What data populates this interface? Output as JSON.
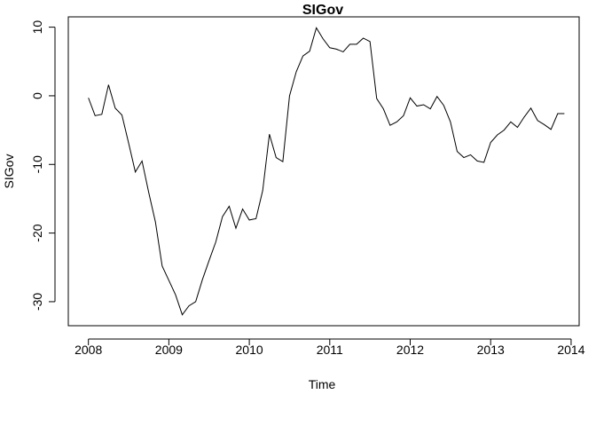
{
  "chart_data": {
    "type": "line",
    "title": "SIGov",
    "xlabel": "Time",
    "ylabel": "SIGov",
    "xlim": [
      2007.75,
      2014.1
    ],
    "ylim": [
      -33.5,
      11.5
    ],
    "x_ticks": [
      2008,
      2009,
      2010,
      2011,
      2012,
      2013,
      2014
    ],
    "x_tick_labels": [
      "2008",
      "2009",
      "2010",
      "2011",
      "2012",
      "2013",
      "2014"
    ],
    "y_ticks": [
      10,
      0,
      -10,
      -20,
      -30
    ],
    "y_tick_labels": [
      "10",
      "0",
      "-10",
      "-20",
      "-30"
    ],
    "grid": false,
    "line_color": "#000000",
    "series": [
      {
        "start": 2008.0,
        "frequency": 12,
        "values": [
          -0.3,
          -2.9,
          -2.7,
          1.6,
          -1.8,
          -2.8,
          -6.9,
          -11.1,
          -9.5,
          -14.1,
          -18.4,
          -24.8,
          -26.9,
          -29.0,
          -31.9,
          -30.6,
          -30.0,
          -26.8,
          -24.0,
          -21.3,
          -17.6,
          -16.1,
          -19.3,
          -16.5,
          -18.1,
          -17.9,
          -13.8,
          -5.6,
          -9.0,
          -9.6,
          0.0,
          3.5,
          5.8,
          6.5,
          9.9,
          8.3,
          7.0,
          6.8,
          6.4,
          7.5,
          7.5,
          8.4,
          7.9,
          -0.4,
          -1.9,
          -4.3,
          -3.8,
          -2.9,
          -0.3,
          -1.5,
          -1.3,
          -1.9,
          -0.1,
          -1.4,
          -3.8,
          -8.1,
          -9.0,
          -8.6,
          -9.5,
          -9.7,
          -6.8,
          -5.7,
          -5.0,
          -3.8,
          -4.6,
          -3.1,
          -1.8,
          -3.6,
          -4.2,
          -4.9,
          -2.6,
          -2.6
        ]
      }
    ]
  }
}
